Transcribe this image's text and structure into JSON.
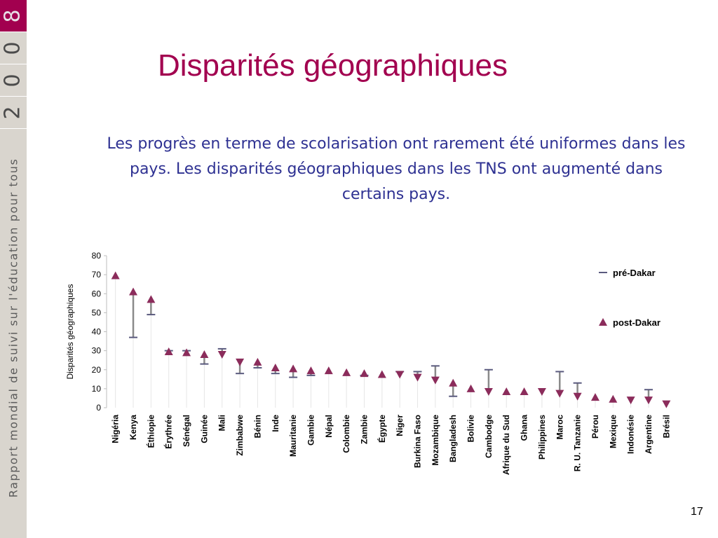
{
  "sidebar": {
    "year_digits": [
      "8",
      "0",
      "0",
      "2"
    ],
    "report_title": "Rapport mondial de suivi sur l'éducation pour tous"
  },
  "slide": {
    "title": "Disparités géographiques",
    "subtitle": "Les progrès en terme de scolarisation ont rarement été uniformes dans les pays. Les disparités géographiques dans les TNS ont augmenté dans certains pays.",
    "page_number": "17"
  },
  "colors": {
    "accent": "#a2004f",
    "subtitle_text": "#2e3192",
    "marker": "#8b2c5b",
    "pre_marker": "#5a5a7e",
    "range_line": "#8a8a8a",
    "sidebar_bg": "#d9d5ce"
  },
  "chart_data": {
    "type": "scatter",
    "ylabel": "Disparités géographiques",
    "xlabel": "",
    "ylim": [
      0,
      80
    ],
    "yticks": [
      0,
      10,
      20,
      30,
      40,
      50,
      60,
      70,
      80
    ],
    "grid": false,
    "legend_position": "right",
    "categories": [
      "Nigéria",
      "Kenya",
      "Éthiopie",
      "Érythrée",
      "Sénégal",
      "Guinée",
      "Mali",
      "Zimbabwe",
      "Bénin",
      "Inde",
      "Mauritanie",
      "Gambie",
      "Népal",
      "Colombie",
      "Zambie",
      "Égypte",
      "Niger",
      "Burkina Faso",
      "Mozambique",
      "Bangladesh",
      "Bolivie",
      "Cambodge",
      "Afrique du Sud",
      "Ghana",
      "Philippines",
      "Maroc",
      "R. U. Tanzanie",
      "Pérou",
      "Mexique",
      "Indonésie",
      "Argentine",
      "Brésil"
    ],
    "series": [
      {
        "name": "pré-Dakar",
        "values": [
          null,
          37,
          49,
          30,
          30,
          23,
          31,
          18,
          21,
          18,
          16,
          17,
          null,
          null,
          17,
          null,
          19,
          19,
          22,
          6,
          null,
          20,
          null,
          null,
          null,
          19,
          13,
          null,
          null,
          null,
          9.5,
          null
        ]
      },
      {
        "name": "post-Dakar",
        "values": [
          69.5,
          61,
          57,
          29.5,
          29,
          28,
          28,
          24,
          24,
          21,
          20.5,
          19.5,
          19.5,
          18.5,
          18,
          17.5,
          17.5,
          16,
          14.5,
          13,
          10,
          8.5,
          8.5,
          8.5,
          8.5,
          7.5,
          6,
          5.5,
          4.5,
          4,
          4,
          2
        ]
      }
    ],
    "post_marker_direction": [
      "up",
      "up",
      "up",
      "up",
      "up",
      "up",
      "down",
      "down",
      "up",
      "up",
      "up",
      "up",
      "up",
      "up",
      "up",
      "up",
      "down",
      "down",
      "down",
      "up",
      "up",
      "down",
      "up",
      "up",
      "down",
      "down",
      "down",
      "up",
      "up",
      "down",
      "down",
      "down"
    ]
  }
}
